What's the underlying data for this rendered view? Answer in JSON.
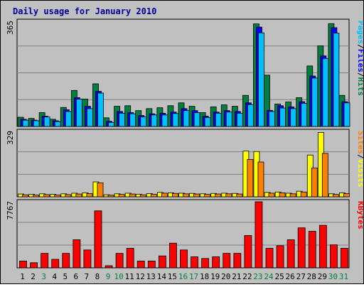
{
  "chart_data": {
    "type": "bar",
    "title": "Daily usage for January 2010",
    "days": [
      "1",
      "2",
      "3",
      "4",
      "5",
      "6",
      "7",
      "8",
      "9",
      "10",
      "11",
      "12",
      "13",
      "14",
      "15",
      "16",
      "17",
      "18",
      "19",
      "20",
      "21",
      "22",
      "23",
      "24",
      "25",
      "26",
      "27",
      "28",
      "29",
      "30",
      "31"
    ],
    "weekend_days": [
      "3",
      "9",
      "10",
      "16",
      "17",
      "23",
      "24",
      "30",
      "31"
    ],
    "colors": {
      "hits": "#008040",
      "files": "#0000ff",
      "pages": "#00c0ff",
      "visits": "#ffff00",
      "sites": "#ff8000",
      "kbytes": "#ff0000",
      "weekend": "#008040",
      "weekday": "#000000",
      "title": "#0000a0"
    },
    "panels": [
      {
        "id": "hits",
        "max_label": "365",
        "ylim": [
          0,
          365
        ],
        "legend": [
          {
            "label": "Pages",
            "color": "#00c0ff"
          },
          {
            "sep": "/"
          },
          {
            "label": "Files",
            "color": "#0000ff"
          },
          {
            "sep": "/"
          },
          {
            "label": "Hits",
            "color": "#008040"
          }
        ],
        "series": [
          {
            "name": "Hits",
            "color": "#008040",
            "values": [
              32,
              28,
              48,
              25,
              66,
              125,
              95,
              148,
              30,
              70,
              72,
              55,
              62,
              65,
              72,
              82,
              70,
              48,
              68,
              75,
              70,
              108,
              356,
              178,
              78,
              85,
              100,
              210,
              280,
              357,
              108
            ]
          },
          {
            "name": "Files",
            "color": "#0000ff",
            "values": [
              25,
              22,
              36,
              20,
              58,
              100,
              70,
              122,
              18,
              52,
              48,
              38,
              44,
              46,
              50,
              62,
              55,
              36,
              50,
              55,
              52,
              82,
              345,
              56,
              72,
              68,
              86,
              175,
              245,
              343,
              86
            ]
          },
          {
            "name": "Pages",
            "color": "#00c0ff",
            "values": [
              22,
              20,
              33,
              17,
              52,
              95,
              62,
              116,
              14,
              46,
              44,
              33,
              40,
              40,
              45,
              55,
              48,
              31,
              46,
              50,
              46,
              76,
              325,
              52,
              64,
              62,
              80,
              168,
              236,
              324,
              82
            ]
          }
        ]
      },
      {
        "id": "visits",
        "max_label": "329",
        "ylim": [
          0,
          329
        ],
        "legend": [
          {
            "label": "Sites",
            "color": "#ff8000"
          },
          {
            "sep": "/"
          },
          {
            "label": "Visits",
            "color": "#ffff00"
          }
        ],
        "series": [
          {
            "name": "Visits",
            "color": "#ffff00",
            "values": [
              14,
              12,
              15,
              12,
              15,
              18,
              20,
              75,
              10,
              15,
              18,
              13,
              16,
              22,
              20,
              18,
              17,
              15,
              17,
              18,
              17,
              230,
              228,
              22,
              24,
              18,
              28,
              210,
              324,
              15,
              20
            ]
          },
          {
            "name": "Sites",
            "color": "#ff8000",
            "values": [
              10,
              9,
              11,
              9,
              11,
              14,
              16,
              70,
              8,
              12,
              14,
              10,
              13,
              18,
              17,
              15,
              14,
              12,
              14,
              15,
              14,
              188,
              175,
              18,
              20,
              15,
              24,
              145,
              218,
              12,
              16
            ]
          }
        ]
      },
      {
        "id": "kbytes",
        "max_label": "7767",
        "ylim": [
          0,
          7767
        ],
        "legend": [
          {
            "label": "KBytes",
            "color": "#ff0000"
          }
        ],
        "series": [
          {
            "name": "KBytes",
            "color": "#ff0000",
            "values": [
              800,
              600,
              1700,
              1000,
              1700,
              3300,
              2100,
              6700,
              250,
              1700,
              2300,
              800,
              800,
              1400,
              2900,
              2100,
              1300,
              1100,
              1300,
              1700,
              1700,
              3800,
              7767,
              2300,
              2600,
              3300,
              4700,
              4300,
              5000,
              2700,
              2300
            ]
          }
        ]
      }
    ]
  }
}
